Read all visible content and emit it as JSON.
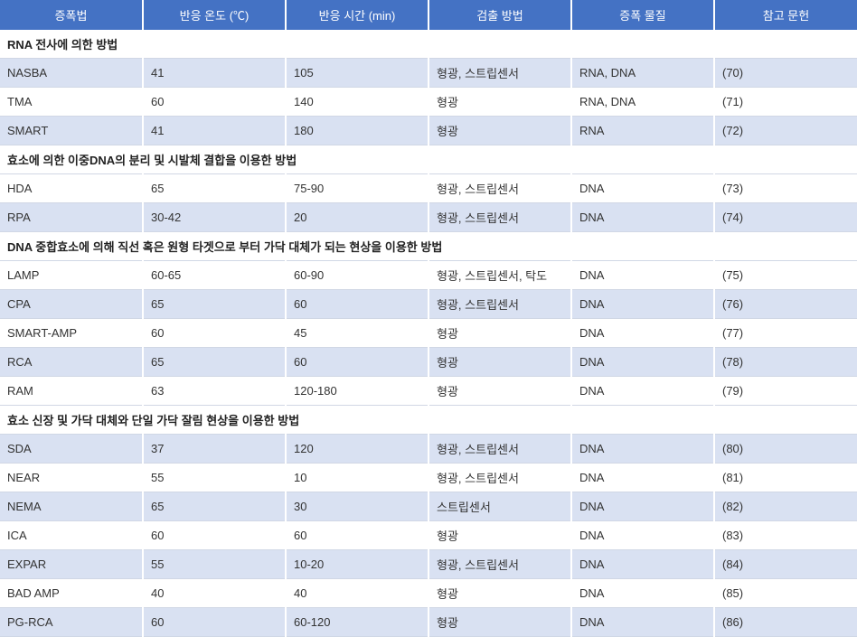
{
  "table": {
    "headers": [
      "증폭법",
      "반응 온도 (℃)",
      "반응 시간 (min)",
      "검출 방법",
      "증폭 물질",
      "참고 문헌"
    ],
    "header_bg": "#4472c4",
    "header_color": "#ffffff",
    "stripe_color": "#d9e1f2",
    "sections": [
      {
        "title": "RNA 전사에 의한 방법",
        "rows": [
          {
            "method": "NASBA",
            "temp": "41",
            "time": "105",
            "detect": "형광, 스트립센서",
            "subst": "RNA, DNA",
            "ref": "(70)"
          },
          {
            "method": "TMA",
            "temp": "60",
            "time": "140",
            "detect": "형광",
            "subst": "RNA, DNA",
            "ref": "(71)"
          },
          {
            "method": "SMART",
            "temp": "41",
            "time": "180",
            "detect": "형광",
            "subst": "RNA",
            "ref": "(72)"
          }
        ]
      },
      {
        "title": "효소에 의한 이중DNA의 분리 및 시발체 결합을 이용한 방법",
        "rows": [
          {
            "method": "HDA",
            "temp": "65",
            "time": "75-90",
            "detect": "형광, 스트립센서",
            "subst": "DNA",
            "ref": "(73)"
          },
          {
            "method": "RPA",
            "temp": "30-42",
            "time": "20",
            "detect": "형광, 스트립센서",
            "subst": "DNA",
            "ref": "(74)"
          }
        ]
      },
      {
        "title": "DNA 중합효소에 의해 직선 혹은 원형 타겟으로 부터 가닥 대체가 되는 현상을 이용한 방법",
        "rows": [
          {
            "method": "LAMP",
            "temp": "60-65",
            "time": "60-90",
            "detect": "형광, 스트립센서, 탁도",
            "subst": "DNA",
            "ref": "(75)"
          },
          {
            "method": "CPA",
            "temp": "65",
            "time": "60",
            "detect": "형광, 스트립센서",
            "subst": "DNA",
            "ref": "(76)"
          },
          {
            "method": "SMART-AMP",
            "temp": "60",
            "time": "45",
            "detect": "형광",
            "subst": "DNA",
            "ref": "(77)"
          },
          {
            "method": "RCA",
            "temp": "65",
            "time": "60",
            "detect": "형광",
            "subst": "DNA",
            "ref": "(78)"
          },
          {
            "method": "RAM",
            "temp": "63",
            "time": "120-180",
            "detect": "형광",
            "subst": "DNA",
            "ref": "(79)"
          }
        ]
      },
      {
        "title": "효소 신장 및 가닥 대체와 단일 가닥 잘림 현상을 이용한 방법",
        "rows": [
          {
            "method": "SDA",
            "temp": "37",
            "time": "120",
            "detect": "형광, 스트립센서",
            "subst": "DNA",
            "ref": "(80)"
          },
          {
            "method": "NEAR",
            "temp": "55",
            "time": "10",
            "detect": "형광, 스트립센서",
            "subst": "DNA",
            "ref": "(81)"
          },
          {
            "method": "NEMA",
            "temp": "65",
            "time": "30",
            "detect": "스트립센서",
            "subst": "DNA",
            "ref": "(82)"
          },
          {
            "method": "ICA",
            "temp": "60",
            "time": "60",
            "detect": "형광",
            "subst": "DNA",
            "ref": "(83)"
          },
          {
            "method": "EXPAR",
            "temp": "55",
            "time": "10-20",
            "detect": "형광, 스트립센서",
            "subst": "DNA",
            "ref": "(84)"
          },
          {
            "method": "BAD AMP",
            "temp": "40",
            "time": "40",
            "detect": "형광",
            "subst": "DNA",
            "ref": "(85)"
          },
          {
            "method": "PG-RCA",
            "temp": "60",
            "time": "60-120",
            "detect": "형광",
            "subst": "DNA",
            "ref": "(86)"
          }
        ]
      }
    ]
  }
}
